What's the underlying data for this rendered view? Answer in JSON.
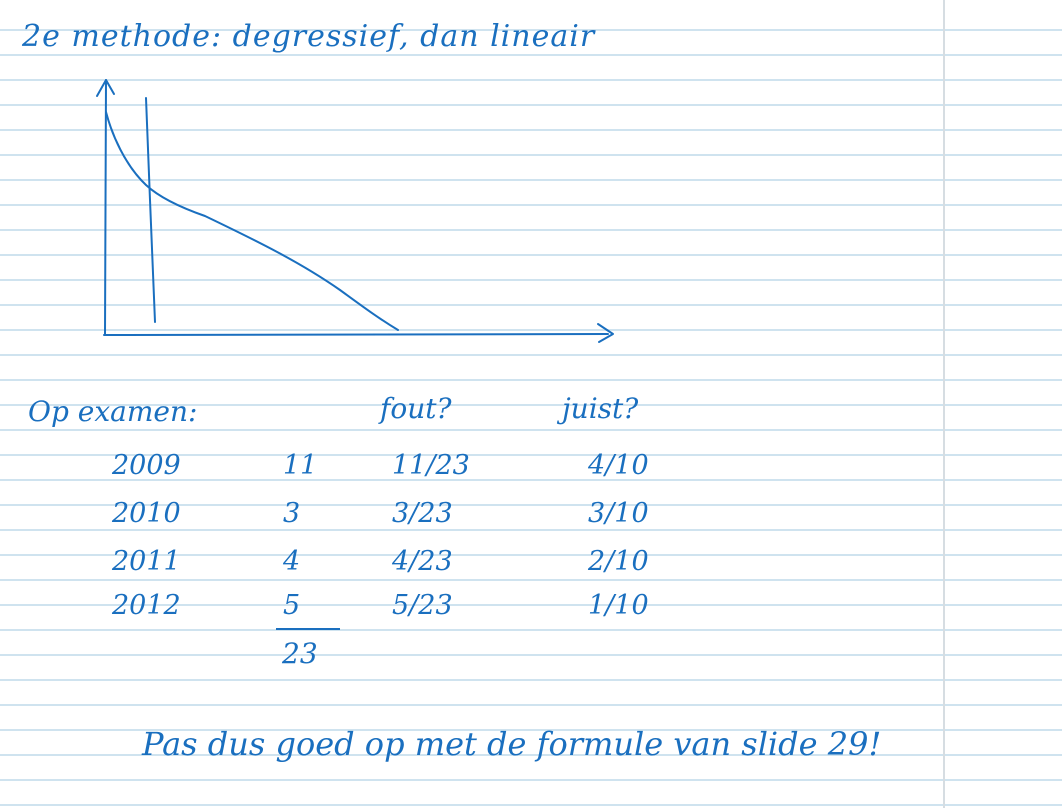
{
  "heading": "2e methode: degressief, dan lineair",
  "exam": {
    "label": "Op examen:",
    "col_fout": "fout?",
    "col_juist": "juist?",
    "rows": [
      {
        "year": "2009",
        "count": "11",
        "fout": "11/23",
        "juist": "4/10"
      },
      {
        "year": "2010",
        "count": "3",
        "fout": "3/23",
        "juist": "3/10"
      },
      {
        "year": "2011",
        "count": "4",
        "fout": "4/23",
        "juist": "2/10"
      },
      {
        "year": "2012",
        "count": "5",
        "fout": "5/23",
        "juist": "1/10"
      }
    ],
    "total": "23"
  },
  "footer": "Pas dus goed op met de formule van slide 29!",
  "colors": {
    "ink": "#1a6fbf",
    "ruling": "#cfe3ef",
    "margin": "#d6dde2"
  }
}
